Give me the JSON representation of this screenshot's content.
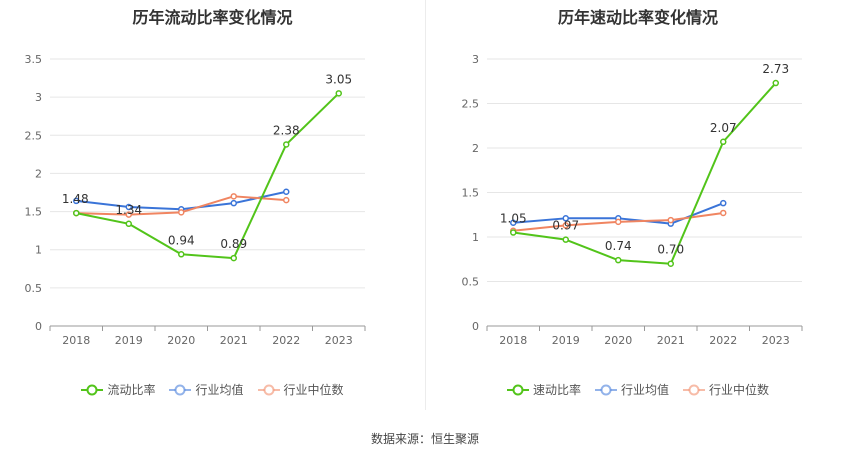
{
  "colors": {
    "primary": "#52c41a",
    "industry_avg": "#3a74d8",
    "industry_median": "#f08561",
    "grid": "#e6e6e6",
    "axis": "#999999"
  },
  "source": "数据来源：恒生聚源",
  "chart_data": [
    {
      "type": "line",
      "title": "历年流动比率变化情况",
      "categories": [
        "2018",
        "2019",
        "2020",
        "2021",
        "2022",
        "2023"
      ],
      "yticks": [
        "0",
        "0.5",
        "1",
        "1.5",
        "2",
        "2.5",
        "3",
        "3.5"
      ],
      "ylim": [
        0,
        3.5
      ],
      "grid": true,
      "legend_position": "bottom",
      "series": [
        {
          "name": "流动比率",
          "key": "primary",
          "values": [
            1.48,
            1.34,
            0.94,
            0.89,
            2.38,
            3.05
          ],
          "labels": [
            "1.48",
            "1.34",
            "0.94",
            "0.89",
            "2.38",
            "3.05"
          ]
        },
        {
          "name": "行业均值",
          "key": "industry_avg",
          "values": [
            1.64,
            1.56,
            1.53,
            1.61,
            1.76,
            null
          ]
        },
        {
          "name": "行业中位数",
          "key": "industry_median",
          "values": [
            1.48,
            1.46,
            1.49,
            1.7,
            1.65,
            null
          ]
        }
      ]
    },
    {
      "type": "line",
      "title": "历年速动比率变化情况",
      "categories": [
        "2018",
        "2019",
        "2020",
        "2021",
        "2022",
        "2023"
      ],
      "yticks": [
        "0",
        "0.5",
        "1",
        "1.5",
        "2",
        "2.5",
        "3"
      ],
      "ylim": [
        0,
        3
      ],
      "grid": true,
      "legend_position": "bottom",
      "series": [
        {
          "name": "速动比率",
          "key": "primary",
          "values": [
            1.05,
            0.97,
            0.74,
            0.7,
            2.07,
            2.73
          ],
          "labels": [
            "1.05",
            "0.97",
            "0.74",
            "0.70",
            "2.07",
            "2.73"
          ]
        },
        {
          "name": "行业均值",
          "key": "industry_avg",
          "values": [
            1.16,
            1.21,
            1.21,
            1.15,
            1.38,
            null
          ]
        },
        {
          "name": "行业中位数",
          "key": "industry_median",
          "values": [
            1.07,
            1.13,
            1.17,
            1.19,
            1.27,
            null
          ]
        }
      ]
    }
  ]
}
